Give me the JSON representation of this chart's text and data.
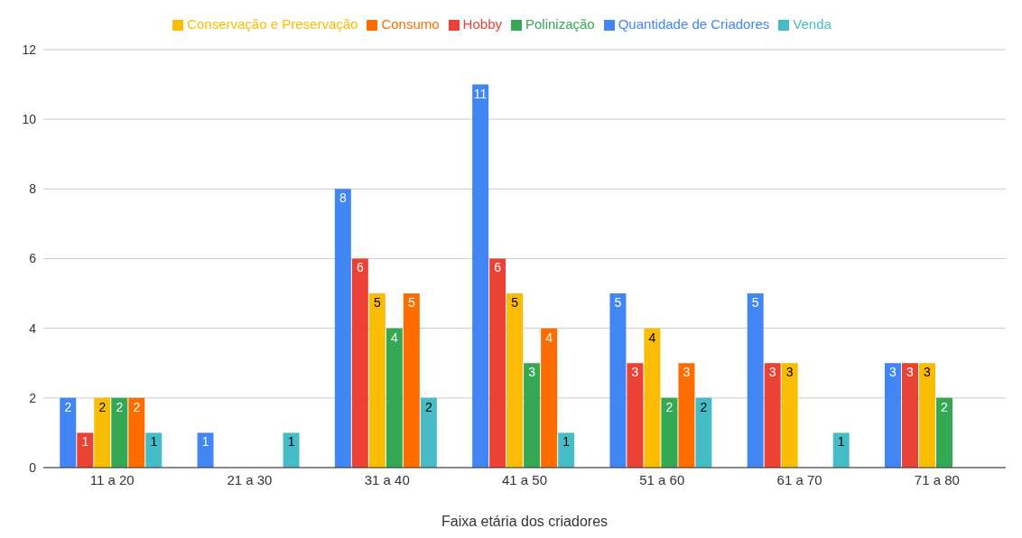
{
  "chart_data": {
    "type": "bar",
    "xlabel": "Faixa etária dos criadores",
    "categories": [
      "11 a 20",
      "21 a 30",
      "31 a 40",
      "41 a 50",
      "51 a 60",
      "61 a 70",
      "71 a 80"
    ],
    "series": [
      {
        "name": "Quantidade de Criadores",
        "color": "#4285f4",
        "values": [
          2,
          1,
          8,
          11,
          5,
          5,
          3
        ]
      },
      {
        "name": "Hobby",
        "color": "#ea4335",
        "values": [
          1,
          null,
          6,
          6,
          3,
          3,
          3
        ]
      },
      {
        "name": "Conservação e Preservação",
        "color": "#fbbc04",
        "values": [
          2,
          null,
          5,
          5,
          4,
          3,
          3
        ]
      },
      {
        "name": "Polinização",
        "color": "#34a853",
        "values": [
          2,
          null,
          4,
          3,
          2,
          null,
          2
        ]
      },
      {
        "name": "Consumo",
        "color": "#ff6d01",
        "values": [
          2,
          null,
          5,
          4,
          3,
          null,
          null
        ]
      },
      {
        "name": "Venda",
        "color": "#46bdc6",
        "values": [
          1,
          1,
          2,
          1,
          2,
          1,
          null
        ]
      }
    ],
    "ylim": [
      0,
      12
    ],
    "yticks": [
      0,
      2,
      4,
      6,
      8,
      10,
      12
    ],
    "grid": "y",
    "legend": "top",
    "data_labels": true
  }
}
